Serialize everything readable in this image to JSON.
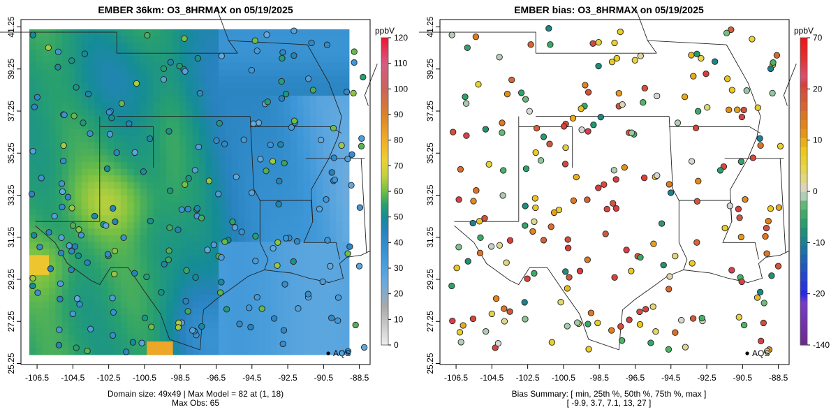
{
  "chart_data": [
    {
      "type": "heatmap",
      "title": "EMBER 36km: O3_8HRMAX on 05/19/2025",
      "x_ticks": [
        "-106.5",
        "-104.5",
        "-102.5",
        "-100.5",
        "-98.5",
        "-96.5",
        "-94.5",
        "-92.5",
        "-90.5",
        "-88.5"
      ],
      "y_ticks": [
        "25.25",
        "27.25",
        "29.25",
        "31.25",
        "33.25",
        "35.25",
        "37.25",
        "39.25",
        "41.25"
      ],
      "xlim": [
        -107.4,
        -87.9
      ],
      "ylim": [
        25.2,
        41.6
      ],
      "colorbar": {
        "unit": "ppbV",
        "ticks": [
          "0",
          "10",
          "20",
          "30",
          "40",
          "50",
          "60",
          "70",
          "80",
          "90",
          "100",
          "110",
          "120"
        ],
        "range": [
          0,
          120
        ]
      },
      "legend": "AQS",
      "footer": [
        "Domain size: 49x49 | Max Model = 82 at (1, 18)",
        "Max Obs: 65"
      ],
      "max_model": 82,
      "max_obs": 65
    },
    {
      "type": "scatter",
      "title": "EMBER bias: O3_8HRMAX on 05/19/2025",
      "x_ticks": [
        "-106.5",
        "-104.5",
        "-102.5",
        "-100.5",
        "-98.5",
        "-96.5",
        "-94.5",
        "-92.5",
        "-90.5",
        "-88.5"
      ],
      "y_ticks": [
        "25.25",
        "27.25",
        "29.25",
        "31.25",
        "33.25",
        "35.25",
        "37.25",
        "39.25",
        "41.25"
      ],
      "xlim": [
        -107.4,
        -87.9
      ],
      "ylim": [
        25.2,
        41.6
      ],
      "colorbar": {
        "unit": "ppbV",
        "ticks": [
          "70",
          "20",
          "10",
          "0",
          "-10",
          "-20",
          "-140"
        ],
        "range": [
          -140,
          70
        ]
      },
      "legend": "AQS",
      "footer": [
        "Bias Summary: [ min, 25th %, 50th %, 75th %, max ]",
        "[ -9.9,   3.7,   7.1,   13,   27 ]"
      ],
      "bias_summary": {
        "min": -9.9,
        "p25": 3.7,
        "p50": 7.1,
        "p75": 13,
        "max": 27
      }
    }
  ]
}
